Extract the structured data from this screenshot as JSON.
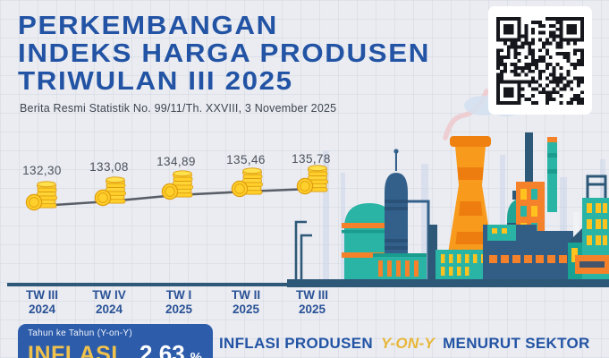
{
  "header": {
    "title_line1": "PERKEMBANGAN",
    "title_line2": "INDEKS HARGA PRODUSEN",
    "title_line3": "TRIWULAN III 2025",
    "subtitle": "Berita Resmi Statistik No. 99/11/Th. XXVIII, 3 November 2025"
  },
  "qr": {
    "icon": "qr-code"
  },
  "chart_data": {
    "type": "line",
    "title": "Perkembangan Indeks Harga Produsen Triwulan III 2025",
    "categories": [
      "TW III 2024",
      "TW IV 2024",
      "TW I 2025",
      "TW II 2025",
      "TW III 2025"
    ],
    "values": [
      132.3,
      133.08,
      134.89,
      135.46,
      135.78
    ],
    "value_labels": [
      "132,30",
      "133,08",
      "134,89",
      "135,46",
      "135,78"
    ],
    "marker": "coin-stack-icon",
    "xlabel": "",
    "ylabel": "",
    "ylim": [
      131,
      137
    ],
    "grid": false,
    "legend_position": "none"
  },
  "x_axis": [
    {
      "quarter": "TW III",
      "year": "2024"
    },
    {
      "quarter": "TW IV",
      "year": "2024"
    },
    {
      "quarter": "TW I",
      "year": "2025"
    },
    {
      "quarter": "TW II",
      "year": "2025"
    },
    {
      "quarter": "TW III",
      "year": "2025"
    }
  ],
  "inflation": {
    "period_label": "Tahun ke Tahun (Y-on-Y)",
    "label": "INFLASI",
    "value": "2,63",
    "unit": "%"
  },
  "section_heading": {
    "lead": "INFLASI PRODUSEN",
    "highlight": "Y-ON-Y",
    "tail": "MENURUT SEKTOR"
  },
  "colors": {
    "title_blue": "#2253a4",
    "box_blue": "#2d5cab",
    "accent_yellow": "#f0c24b",
    "axis_label_blue": "#2a5296",
    "trend_line_gray": "#585d66",
    "ground_navy": "#2e5878",
    "coin_gold": "#ffd02b",
    "factory_orange": "#f5822a",
    "factory_teal": "#2ab4a6",
    "window_yellow": "#ffc21e"
  }
}
